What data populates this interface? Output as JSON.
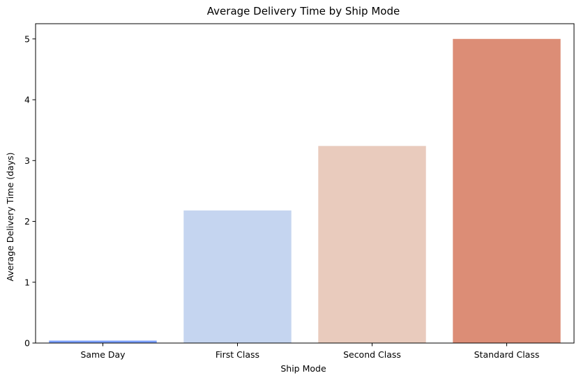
{
  "chart_data": {
    "type": "bar",
    "title": "Average Delivery Time by Ship Mode",
    "xlabel": "Ship Mode",
    "ylabel": "Average Delivery Time (days)",
    "categories": [
      "Same Day",
      "First Class",
      "Second Class",
      "Standard Class"
    ],
    "values": [
      0.04,
      2.18,
      3.24,
      5.0
    ],
    "colors": [
      "#7b9ff9",
      "#c5d5f0",
      "#e9cbbd",
      "#dc8d76"
    ],
    "ylim": [
      0,
      5.25
    ],
    "yticks": [
      0,
      1,
      2,
      3,
      4,
      5
    ],
    "grid": false,
    "legend": "none"
  }
}
